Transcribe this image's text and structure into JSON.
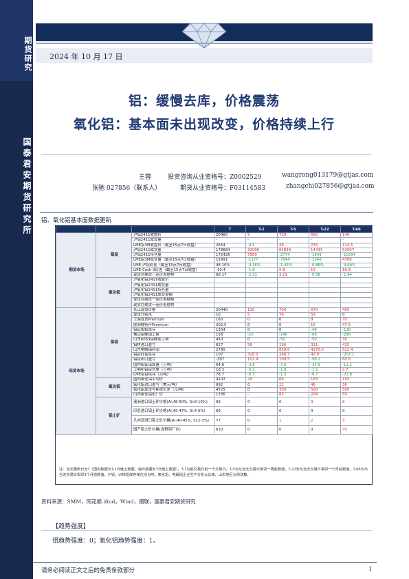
{
  "sidebar": {
    "top_label": "期货研究",
    "mid_label": "国泰君安期货研究所"
  },
  "header": {
    "date": "2024 年 10 月 17 日"
  },
  "titles": {
    "line1": "铝：缓慢去库，价格震荡",
    "line2": "氧化铝：基本面未出现改变，价格持续上行"
  },
  "authors": [
    {
      "name": "王蓉",
      "qual": "投资咨询从业资格号：Z0002529",
      "email": "wangrong013179@gtjas.com"
    },
    {
      "name": "张驰 027856（联系人）",
      "qual": "期货从业资格号：F03114583",
      "email": "zhangchi027856@gtjas.com"
    }
  ],
  "section_title": "铝、氧化铝基本面数据更新",
  "table": {
    "headers": [
      "",
      "",
      "",
      "T",
      "T-1",
      "T-5",
      "T-22",
      "T-66"
    ],
    "groups": [
      {
        "market": "期货市场",
        "sub": "铝锭",
        "rows": [
          [
            "沪铝2411收盘价",
            "20460",
            "5",
            "720",
            "560",
            "140"
          ],
          [
            "沪铝2411成交量",
            "-",
            "-",
            "-",
            "-",
            "-"
          ],
          [
            "LME铝3M收盘价（截至15点7日收盘）",
            "2654",
            "-9.5",
            "49",
            "276",
            "114.5"
          ],
          [
            "沪铝2411成交量",
            "178684",
            "32090",
            "64839",
            "14433",
            "52007"
          ],
          [
            "沪铝2411持仓量",
            "172426",
            "7959",
            "-2774",
            "-1649",
            "-10254"
          ],
          [
            "LME铝3M成交量（截至15点7日收盘）",
            "15991",
            "-1177",
            "-7544",
            "-1346",
            "4789"
          ],
          [
            "LME-沪铝价差（截至15点7日收盘）",
            "48.10%",
            "-0.16%",
            "-1.45%",
            "-0.86%",
            "-4.69%"
          ],
          [
            "LME-Cash-3价差（截至15点7日收盘）",
            "-10.4",
            "-1.8",
            "5.8",
            "10",
            "16.8"
          ],
          [
            "现货月期货一连价差结构",
            "66.17",
            "-2.31",
            "2.21",
            "-0.08",
            "-1.94"
          ]
        ]
      },
      {
        "market": "",
        "sub": "氧化铝",
        "rows": [
          [
            "沪氧化铝2411收盘价",
            "",
            "",
            "",
            "",
            ""
          ],
          [
            "沪氧化铝2411成交量",
            "",
            "",
            "",
            "",
            ""
          ],
          [
            "沪氧化铝2411持仓量",
            "",
            "",
            "",
            "",
            ""
          ],
          [
            "沪氧化铝2411成交金额",
            "",
            "",
            "",
            "",
            ""
          ],
          [
            "现货月期货一连价差结构",
            "",
            "",
            "",
            "",
            ""
          ],
          [
            "现货月期货一连价差结构",
            "",
            "",
            "",
            "",
            ""
          ]
        ]
      },
      {
        "market": "现货市场",
        "sub": "铝锭",
        "rows": [
          [
            "长江现货价格",
            "20440",
            "110",
            "700",
            "670",
            "400"
          ],
          [
            "现货升贴水",
            "10",
            "5",
            "70",
            "55",
            "0"
          ],
          [
            "上海现货Premium",
            "160",
            "0",
            "0",
            "0",
            "70"
          ],
          [
            "欧洲鹿特丹Premium",
            "202.5",
            "0",
            "0",
            "15",
            "47.5"
          ],
          [
            "铝锭加权库存",
            "1354",
            "0",
            "0",
            "-48",
            "-138"
          ],
          [
            "佛山铝棒加工费",
            "158",
            "-20",
            "-140",
            "-60",
            "-290"
          ],
          [
            "山东6063铝棒加工费",
            "450",
            "0",
            "-50",
            "-50",
            "30"
          ],
          [
            "铝材进口盈亏",
            "657",
            "56",
            "196",
            "311",
            "415"
          ],
          [
            "山东电解铝利润",
            "2795",
            "-",
            "858.6",
            "4270.0",
            "522.4"
          ],
          [
            "铝锭社会库存",
            "107",
            "318.5",
            "246.7",
            "40.0",
            "-207.1"
          ],
          [
            "铝锭出口盈亏",
            "-307",
            "102.4",
            "109.5",
            "-98.2",
            "60.6"
          ],
          [
            "国内铝锭出库量（万吨）",
            "64.6",
            "-3.8",
            "-7.9",
            "-14.9",
            "-11.2"
          ],
          [
            "上期所铝锭仓单（万吨）",
            "18.3",
            "-0.2",
            "-1.6",
            "-1.1",
            "2.7"
          ],
          [
            "LME铝锭库存（万吨）",
            "78.7",
            "-0.3",
            "-1.5",
            "-6.7",
            "-22.8"
          ]
        ]
      },
      {
        "market": "",
        "sub": "氧化铝",
        "rows": [
          [
            "国内氧化铝平均价",
            "4102",
            "29",
            "69",
            "163",
            "193"
          ],
          [
            "氧化铝进口盈亏（美元/吨）",
            "692",
            "0",
            "21",
            "46",
            "36"
          ],
          [
            "氧化铝现货与期货价差（元/吨）",
            "4525",
            "0",
            "300",
            "500",
            "500"
          ],
          [
            "山西氧化铝出厂价",
            "1336",
            "-",
            "83",
            "204",
            "59"
          ]
        ]
      },
      {
        "market": "",
        "sub": "铝土矿",
        "rows": [
          [
            "澳洲进口铝土矿价格(Al:48-50%, Si:8-10%)",
            "69",
            "0",
            "0",
            "3",
            "8"
          ],
          [
            "印尼进口铝土矿价格(Al:45-47%, Si:4-6%)",
            "69",
            "0",
            "0",
            "0",
            "0"
          ],
          [
            "几内亚进口铝土矿价格(Al:40-45%, Si:2-3%)",
            "77",
            "0",
            "1",
            "2",
            "3"
          ],
          [
            "国产铝土矿价格(含税到厂价)",
            "610",
            "0",
            "0",
            "0",
            "70"
          ]
        ]
      }
    ],
    "note": "注：当天更新日为T（国内数据为T-1日晚上数据，海外数据为T日晚上数据），T-1为前交易日前一个交易日，T-5为与当天交易日相邻一周前数值，T-22为与当天交易日相邻一个月前数值，T-66为与当天交易日相邻3个月前数值。沪铝、LME铝库存单位均为吨。氧化铝、电解铝企业生产分析以云南、山东地区为例测算。"
  },
  "source": "资料来源：SMM，同花顺 ifind，Wind，钢联，国泰君安期货研究",
  "trend": {
    "title": "【趋势强度】",
    "text": "铝趋势强度：0；氧化铝趋势强度：1。"
  },
  "footer": {
    "disclaimer": "请务必阅读正文之后的免责条款部分",
    "page": "1"
  }
}
